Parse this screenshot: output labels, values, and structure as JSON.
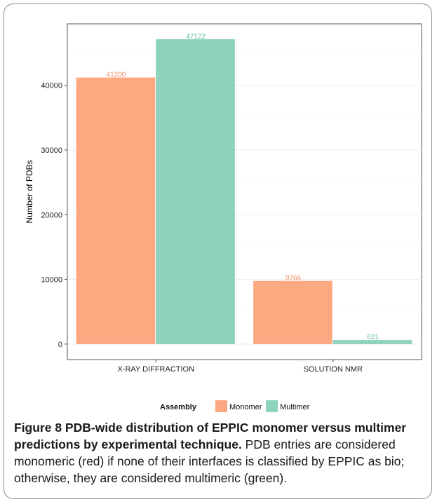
{
  "chart_data": {
    "type": "bar",
    "categories": [
      "X-RAY DIFFRACTION",
      "SOLUTION NMR"
    ],
    "series": [
      {
        "name": "Monomer",
        "values": [
          41200,
          9766
        ],
        "color": "#fca982"
      },
      {
        "name": "Multimer",
        "values": [
          47122,
          621
        ],
        "color": "#8dd2ba"
      }
    ],
    "data_labels": [
      [
        "41200",
        "9766"
      ],
      [
        "47122",
        "621"
      ]
    ],
    "xlabel": "",
    "ylabel": "Number of PDBs",
    "ylim": [
      -2400,
      49500
    ],
    "yticks": [
      0,
      10000,
      20000,
      30000,
      40000
    ],
    "ytick_labels": [
      "0",
      "10000",
      "20000",
      "30000",
      "40000"
    ],
    "grid": true,
    "legend": {
      "title": "Assembly",
      "position": "bottom"
    },
    "label_colors": [
      "#f08a66",
      "#5fbfa0"
    ]
  },
  "caption": {
    "title": "Figure 8 PDB-wide distribution of EPPIC monomer versus multimer predictions by experimental technique.",
    "body": " PDB entries are considered monomeric (red) if none of their interfaces is classified by EPPIC as bio; otherwise, they are considered multimeric (green)."
  }
}
